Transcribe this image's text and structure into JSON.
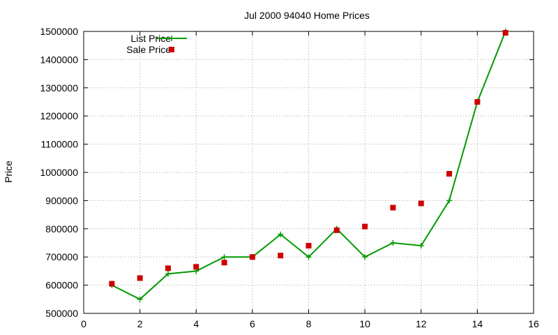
{
  "chart_data": {
    "type": "line",
    "title": "Jul 2000 94040 Home Prices",
    "xlabel": "",
    "ylabel": "Price",
    "xlim": [
      0,
      16
    ],
    "ylim": [
      500000,
      1500000
    ],
    "xticks": [
      0,
      2,
      4,
      6,
      8,
      10,
      12,
      14,
      16
    ],
    "yticks": [
      500000,
      600000,
      700000,
      800000,
      900000,
      1000000,
      1100000,
      1200000,
      1300000,
      1400000,
      1500000
    ],
    "grid": true,
    "legend_position": "top-left",
    "series": [
      {
        "name": "List Price",
        "style": "line-with-plus-markers",
        "color": "#009900",
        "x": [
          1,
          2,
          3,
          4,
          5,
          6,
          7,
          8,
          9,
          10,
          11,
          12,
          13,
          14,
          15
        ],
        "y": [
          600000,
          550000,
          640000,
          650000,
          700000,
          700000,
          780000,
          700000,
          800000,
          700000,
          750000,
          740000,
          900000,
          1250000,
          1500000
        ]
      },
      {
        "name": "Sale Price",
        "style": "square-markers",
        "color": "#cc0000",
        "x": [
          1,
          2,
          3,
          4,
          5,
          6,
          7,
          8,
          9,
          10,
          11,
          12,
          13,
          14,
          15
        ],
        "y": [
          605000,
          625000,
          660000,
          665000,
          680000,
          700000,
          705000,
          740000,
          795000,
          808000,
          875000,
          890000,
          995000,
          1250000,
          1495000
        ]
      }
    ]
  }
}
